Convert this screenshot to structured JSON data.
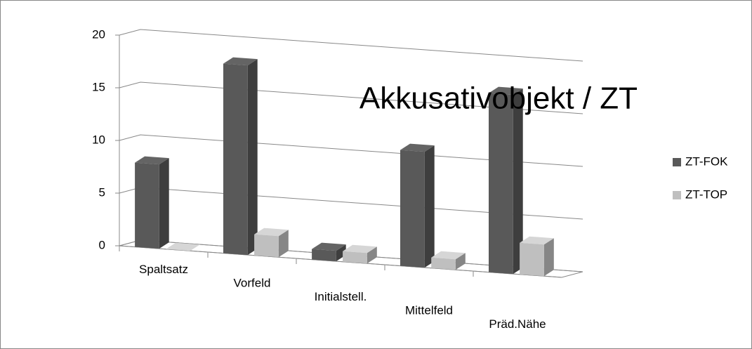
{
  "chart_data": {
    "type": "bar3d",
    "title": "Akkusativobjekt / ZT",
    "categories": [
      "Spaltsatz",
      "Vorfeld",
      "Initialstell.",
      "Mittelfeld",
      "Präd.Nähe"
    ],
    "series": [
      {
        "name": "ZT-FOK",
        "color": "#595959",
        "values": [
          8,
          18,
          1,
          11,
          17
        ]
      },
      {
        "name": "ZT-TOP",
        "color": "#bfbfbf",
        "values": [
          0,
          2,
          1,
          1,
          3
        ]
      }
    ],
    "ylim": [
      0,
      20
    ],
    "yticks": [
      0,
      5,
      10,
      15,
      20
    ],
    "grid": true,
    "legend": "right"
  }
}
